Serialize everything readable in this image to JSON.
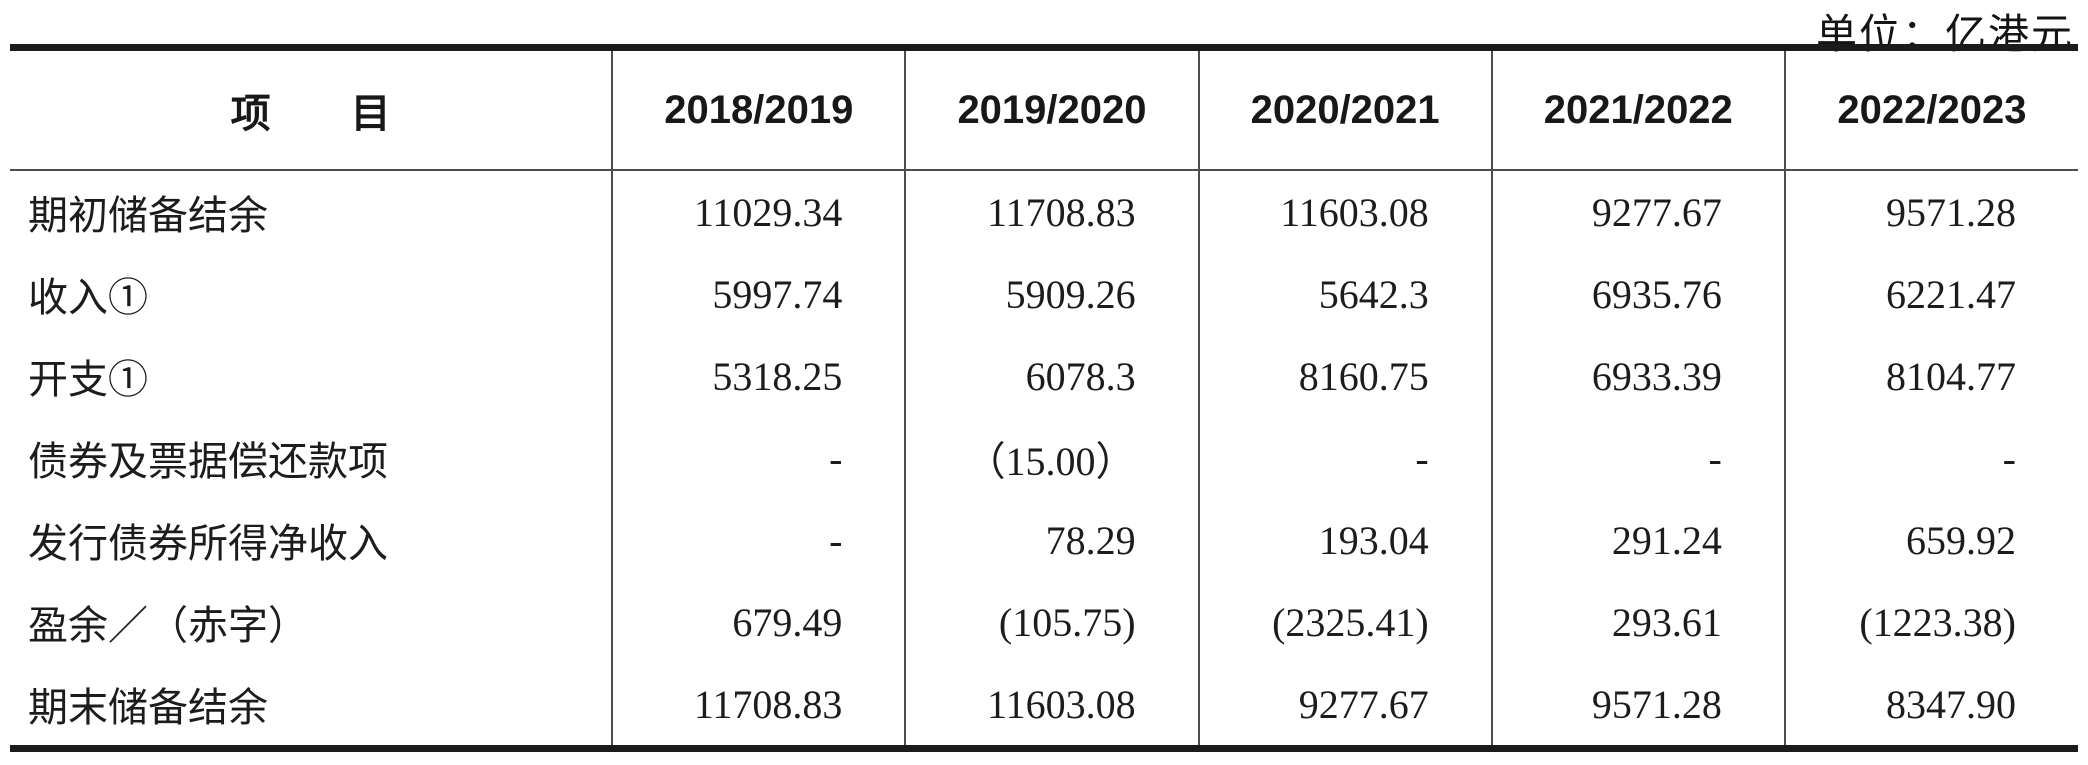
{
  "unit_label": "单位：亿港元",
  "table": {
    "header": {
      "item": "项　　目",
      "years": [
        "2018/2019",
        "2019/2020",
        "2020/2021",
        "2021/2022",
        "2022/2023"
      ]
    },
    "rows": [
      {
        "label": "期初储备结余",
        "values": [
          "11029.34",
          "11708.83",
          "11603.08",
          "9277.67",
          "9571.28"
        ]
      },
      {
        "label": "收入①",
        "values": [
          "5997.74",
          "5909.26",
          "5642.3",
          "6935.76",
          "6221.47"
        ]
      },
      {
        "label": "开支①",
        "values": [
          "5318.25",
          "6078.3",
          "8160.75",
          "6933.39",
          "8104.77"
        ]
      },
      {
        "label": "债券及票据偿还款项",
        "values": [
          "-",
          "（15.00）",
          "-",
          "-",
          "-"
        ]
      },
      {
        "label": "发行债券所得净收入",
        "values": [
          "-",
          "78.29",
          "193.04",
          "291.24",
          "659.92"
        ]
      },
      {
        "label": "盈余／（赤字）",
        "values": [
          "679.49",
          "(105.75)",
          "(2325.41)",
          "293.61",
          "(1223.38)"
        ]
      },
      {
        "label": "期末储备结余",
        "values": [
          "11708.83",
          "11603.08",
          "9277.67",
          "9571.28",
          "8347.90"
        ]
      }
    ]
  },
  "chart_data": {
    "type": "table",
    "title": "",
    "unit": "亿港元",
    "columns": [
      "项目",
      "2018/2019",
      "2019/2020",
      "2020/2021",
      "2021/2022",
      "2022/2023"
    ],
    "rows": [
      [
        "期初储备结余",
        11029.34,
        11708.83,
        11603.08,
        9277.67,
        9571.28
      ],
      [
        "收入①",
        5997.74,
        5909.26,
        5642.3,
        6935.76,
        6221.47
      ],
      [
        "开支①",
        5318.25,
        6078.3,
        8160.75,
        6933.39,
        8104.77
      ],
      [
        "债券及票据偿还款项",
        null,
        -15.0,
        null,
        null,
        null
      ],
      [
        "发行债券所得净收入",
        null,
        78.29,
        193.04,
        291.24,
        659.92
      ],
      [
        "盈余／（赤字）",
        679.49,
        -105.75,
        -2325.41,
        293.61,
        -1223.38
      ],
      [
        "期末储备结余",
        11708.83,
        11603.08,
        9277.67,
        9571.28,
        8347.9
      ]
    ]
  }
}
